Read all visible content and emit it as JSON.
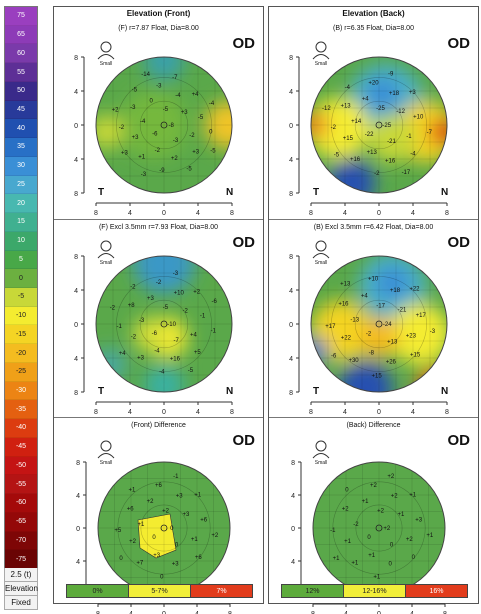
{
  "scale": {
    "values": [
      "75",
      "65",
      "60",
      "55",
      "50",
      "45",
      "40",
      "35",
      "30",
      "25",
      "20",
      "15",
      "10",
      "5",
      "0",
      "-5",
      "-10",
      "-15",
      "-20",
      "-25",
      "-30",
      "-35",
      "-40",
      "-45",
      "-50",
      "-55",
      "-60",
      "-65",
      "-70",
      "-75"
    ],
    "colors": [
      "#9a3fbf",
      "#8d3bb7",
      "#7a3aaa",
      "#5d2f96",
      "#3a2a8a",
      "#283a9a",
      "#2050b0",
      "#2870c6",
      "#3a8fd6",
      "#48a8cf",
      "#48b8b0",
      "#40b090",
      "#3ca86a",
      "#48a848",
      "#6cb040",
      "#c8d838",
      "#f4ec30",
      "#f4d424",
      "#f4bc20",
      "#f0a018",
      "#ec8414",
      "#e46010",
      "#dc3c10",
      "#d02010",
      "#c41414",
      "#b41414",
      "#a40a0a",
      "#940808",
      "#7e0606",
      "#6a0404"
    ],
    "step_label": "2.5 (t)",
    "mode_label": "Elevation",
    "fixed_label": "Fixed"
  },
  "columns": [
    {
      "title": "Elevation (Front)",
      "panels": [
        {
          "subtitle": "(F) r=7.87 Float, Dia=8.00",
          "eye": "OD",
          "person_label": "Small",
          "temporal": "T",
          "nasal": "N",
          "y_ticks": [
            "8",
            "4",
            "0",
            "4",
            "8"
          ],
          "x_ticks": [
            "8",
            "4",
            "0",
            "4",
            "8"
          ],
          "values": [
            "-8",
            "-6",
            "-5",
            "-3",
            "-4",
            "+3",
            "-2",
            "0",
            "-2",
            "+3",
            "-4",
            "+2",
            "-3",
            "-5",
            "+1",
            "-3",
            "+3",
            "-2",
            "+4",
            "-9",
            "-5",
            "0",
            "+3",
            "-7",
            "-5",
            "+2",
            "-4",
            "-3",
            "-14",
            "-5"
          ]
        },
        {
          "subtitle": "(F) Excl 3.5mm r=7.93 Float, Dia=8.00",
          "eye": "OD",
          "person_label": "Small",
          "temporal": "T",
          "nasal": "N",
          "y_ticks": [
            "8",
            "4",
            "0",
            "4",
            "8"
          ],
          "x_ticks": [
            "8",
            "4",
            "0",
            "4",
            "8"
          ],
          "values": [
            "-10",
            "-6",
            "-5",
            "-7",
            "-3",
            "-2",
            "-4",
            "+3",
            "+4",
            "-2",
            "+10",
            "+16",
            "+8",
            "-1",
            "+3",
            "-2",
            "+5",
            "-1",
            "+2",
            "-4",
            "-2",
            "-1",
            "+4",
            "-3",
            "-5",
            "-2",
            "-6"
          ]
        },
        {
          "subtitle": "(Front) Difference",
          "eye": "OD",
          "person_label": "Small",
          "temporal": "T",
          "nasal": "N",
          "y_ticks": [
            "8",
            "4",
            "0",
            "4",
            "8"
          ],
          "x_ticks": [
            "8",
            "4",
            "0",
            "4",
            "8"
          ],
          "values": [
            "0",
            "0",
            "+2",
            "0",
            "+1",
            "+3",
            "+3",
            "+2",
            "+1",
            "+2",
            "+3",
            "+3",
            "+6",
            "+6",
            "+7",
            "+6",
            "+6",
            "+5",
            "+1",
            "0",
            "+1",
            "+2",
            "0",
            "-1"
          ],
          "legend": [
            {
              "label": "0%",
              "color": "#5dab3c"
            },
            {
              "label": "5-7%",
              "color": "#f2ee3a"
            },
            {
              "label": "7%",
              "color": "#e23c1c"
            }
          ]
        }
      ]
    },
    {
      "title": "Elevation (Back)",
      "panels": [
        {
          "subtitle": "(B) r=6.35 Float, Dia=8.00",
          "eye": "OD",
          "person_label": "Small",
          "temporal": "T",
          "nasal": "N",
          "y_ticks": [
            "8",
            "4",
            "0",
            "4",
            "8"
          ],
          "x_ticks": [
            "8",
            "4",
            "0",
            "4",
            "8"
          ],
          "values": [
            "-25",
            "-22",
            "-25",
            "-21",
            "+14",
            "-12",
            "+13",
            "+4",
            "-1",
            "+15",
            "+18",
            "+16",
            "+13",
            "+10",
            "+16",
            "+20",
            "-4",
            "-2",
            "+3",
            "-2",
            "-4",
            "-7",
            "-5",
            "-9",
            "-17",
            "-12"
          ]
        },
        {
          "subtitle": "(B) Excl 3.5mm r=6.42 Float, Dia=8.00",
          "eye": "OD",
          "person_label": "Small",
          "temporal": "T",
          "nasal": "N",
          "y_ticks": [
            "8",
            "4",
            "0",
            "4",
            "8"
          ],
          "x_ticks": [
            "8",
            "4",
            "0",
            "4",
            "8"
          ],
          "values": [
            "-24",
            "-2",
            "-17",
            "+13",
            "-13",
            "-21",
            "-8",
            "+4",
            "+23",
            "+22",
            "+18",
            "+26",
            "+16",
            "+17",
            "+30",
            "+10",
            "+15",
            "+17",
            "+22",
            "+15",
            "+13",
            "-3",
            "-6"
          ]
        },
        {
          "subtitle": "(Back) Difference",
          "eye": "OD",
          "person_label": "Small",
          "temporal": "T",
          "nasal": "N",
          "y_ticks": [
            "8",
            "4",
            "0",
            "4",
            "8"
          ],
          "x_ticks": [
            "8",
            "4",
            "0",
            "4",
            "8"
          ],
          "values": [
            "+2",
            "0",
            "+2",
            "0",
            "-2",
            "+1",
            "+1",
            "+1",
            "+2",
            "+1",
            "+2",
            "0",
            "+2",
            "+3",
            "+1",
            "+2",
            "0",
            "-1",
            "+1",
            "+1",
            "0",
            "+1",
            "+1",
            "+2"
          ],
          "legend": [
            {
              "label": "12%",
              "color": "#5dab3c"
            },
            {
              "label": "12-16%",
              "color": "#f2ee3a"
            },
            {
              "label": "16%",
              "color": "#e23c1c"
            }
          ]
        }
      ]
    }
  ]
}
